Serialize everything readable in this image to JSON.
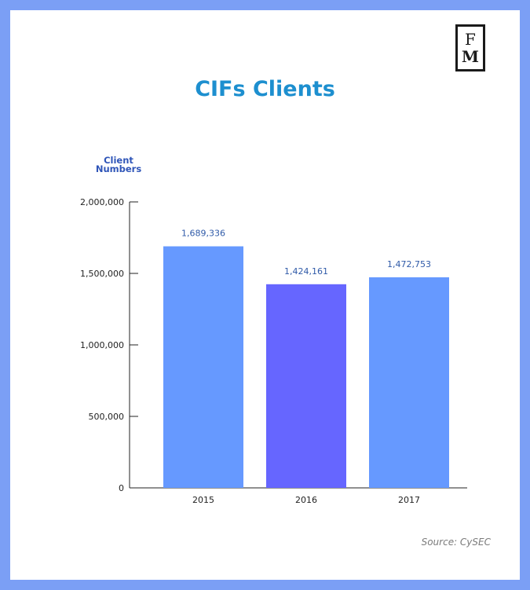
{
  "logo": {
    "line1": "F",
    "line2": "M"
  },
  "source": "Source: CySEC",
  "colors": {
    "frame": "#7b9ff5",
    "title": "#1d8fcf",
    "axis_label": "#2f55b8",
    "bar_2015": "#6699ff",
    "bar_2016": "#6666ff",
    "bar_2017": "#6699ff",
    "data_label": "#2f5aa8"
  },
  "chart_data": {
    "type": "bar",
    "title": "CIFs Clients",
    "ylabel_lines": [
      "Client",
      "Numbers"
    ],
    "xlabel": "",
    "categories": [
      "2015",
      "2016",
      "2017"
    ],
    "values": [
      1689336,
      1424161,
      1472753
    ],
    "data_labels": [
      "1,689,336",
      "1,424,161",
      "1,472,753"
    ],
    "ylim": [
      0,
      2000000
    ],
    "yticks": [
      0,
      500000,
      1000000,
      1500000,
      2000000
    ],
    "ytick_labels": [
      "0",
      "500,000",
      "1,000,000",
      "1,500,000",
      "2,000,000"
    ],
    "grid": false,
    "legend": "none"
  }
}
